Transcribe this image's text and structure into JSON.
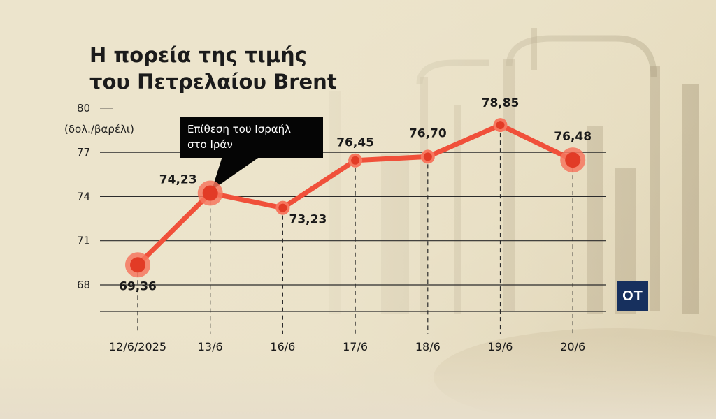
{
  "chart_data": {
    "type": "line",
    "title": [
      "Η πορεία της τιμής",
      "του Πετρελαίου Brent"
    ],
    "ylabel": "(δολ./βαρέλι)",
    "categories": [
      "12/6/2025",
      "13/6",
      "16/6",
      "17/6",
      "18/6",
      "19/6",
      "20/6"
    ],
    "values": [
      69.36,
      74.23,
      73.23,
      76.45,
      76.7,
      78.85,
      76.48
    ],
    "value_labels": [
      "69,36",
      "74,23",
      "73,23",
      "76,45",
      "76,70",
      "78,85",
      "76,48"
    ],
    "y_ticks": [
      68,
      71,
      74,
      77,
      80
    ],
    "ylim": [
      66.2,
      80
    ],
    "annotation": {
      "lines": [
        "Επίθεση  του Ισραήλ",
        "στο Ιράν"
      ],
      "category_index": 1
    },
    "colors": {
      "line": "#f0503a",
      "highlight": "#f6775f"
    },
    "grid": true,
    "legend": "none"
  },
  "logo": "OT"
}
